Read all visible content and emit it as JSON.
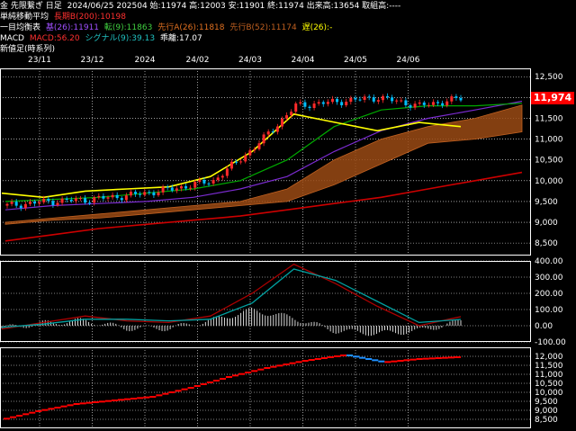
{
  "header": {
    "line1": {
      "instrument": "金 先限繋ぎ 日足",
      "stats": "2024/06/25 202504 始:11974 高:12003 安:11901 終:11974 出来高:13654 取組高:----"
    },
    "line2": {
      "label": "単純移動平均",
      "ma": "長期B(200):10198"
    },
    "line3": {
      "label": "一目均衡表",
      "base": "基(26):11911",
      "conv": "転(9):11863",
      "spanA": "先行A(26):11818",
      "spanB": "先行B(52):11174",
      "lag": "遅(26):-"
    },
    "line4": {
      "label": "MACD",
      "macd": "MACD:56.20",
      "signal": "シグナル(9):39.13",
      "diff": "乖離:17.07"
    },
    "line5": {
      "label": "新値足(時系列)"
    }
  },
  "current_price": "11,974",
  "colors": {
    "background": "#000000",
    "lagging_span": "#ffff00",
    "ma200": "#cc0000",
    "kijun": "#7b2bd0",
    "tenkan": "#00aa00",
    "cloud": "#9a4a14",
    "up_candle": "#ff2a2a",
    "down_candle": "#00bfff",
    "macd_line": "#aa0000",
    "signal_line": "#00a0a0",
    "price_tag": "#ff0000",
    "newprice_up": "#ff0000",
    "newprice_down": "#1e90ff"
  },
  "chart_data": [
    {
      "type": "candlestick",
      "title": "金 先限繋ぎ 日足",
      "x_ticks": [
        "23/11",
        "23/12",
        "2024",
        "24/02",
        "24/03",
        "24/04",
        "24/05",
        "24/06"
      ],
      "ylim": [
        8200,
        12700
      ],
      "y_ticks": [
        "12,500",
        "12,000",
        "11,500",
        "11,000",
        "10,500",
        "10,000",
        "9,500",
        "9,000",
        "8,500"
      ],
      "y_tick_values": [
        12500,
        12000,
        11500,
        11000,
        10500,
        10000,
        9500,
        9000,
        8500
      ],
      "series": [
        {
          "name": "長期B(200)",
          "values": [
            8550,
            8700,
            8850,
            8950,
            9050,
            9150,
            9300,
            9450,
            9600,
            9800,
            10000,
            10198
          ]
        },
        {
          "name": "先行A(26)",
          "values": [
            9000,
            9100,
            9200,
            9300,
            9400,
            9500,
            9800,
            10500,
            11000,
            11300,
            11500,
            11818
          ]
        },
        {
          "name": "先行B(52)",
          "values": [
            8950,
            9050,
            9100,
            9200,
            9300,
            9400,
            9500,
            9900,
            10400,
            10900,
            11000,
            11174
          ]
        },
        {
          "name": "遅(26)",
          "values": [
            9700,
            9600,
            9750,
            9800,
            9850,
            10100,
            10700,
            11600,
            11400,
            11200,
            11400,
            11300
          ]
        },
        {
          "name": "基(26)",
          "values": [
            9300,
            9400,
            9450,
            9500,
            9600,
            9800,
            10100,
            10700,
            11200,
            11500,
            11700,
            11911
          ]
        },
        {
          "name": "転(9)",
          "values": [
            9500,
            9550,
            9600,
            9700,
            9800,
            10000,
            10500,
            11300,
            11700,
            11800,
            11800,
            11863
          ]
        },
        {
          "name": "close",
          "values": [
            9400,
            9500,
            9550,
            9650,
            9800,
            10000,
            10800,
            11800,
            11900,
            12000,
            11800,
            11974
          ]
        }
      ]
    },
    {
      "type": "line",
      "title": "MACD",
      "ylim": [
        -100,
        400
      ],
      "y_ticks": [
        "400.00",
        "300.00",
        "200.00",
        "100.00",
        "0.00",
        "-100.00"
      ],
      "y_tick_values": [
        400,
        300,
        200,
        100,
        0,
        -100
      ],
      "series": [
        {
          "name": "MACD",
          "values": [
            -20,
            20,
            60,
            30,
            20,
            60,
            200,
            380,
            260,
            120,
            0,
            56.2
          ]
        },
        {
          "name": "シグナル(9)",
          "values": [
            -10,
            10,
            40,
            40,
            30,
            40,
            140,
            350,
            280,
            150,
            20,
            39.13
          ]
        }
      ]
    },
    {
      "type": "bar",
      "title": "新値足(時系列)",
      "ylim": [
        8000,
        12500
      ],
      "y_ticks": [
        "12,000",
        "11,500",
        "11,000",
        "10,500",
        "10,000",
        "9,500",
        "9,000",
        "8,500"
      ],
      "y_tick_values": [
        12000,
        11500,
        11000,
        10500,
        10000,
        9500,
        9000,
        8500
      ],
      "values": [
        8500,
        9000,
        9400,
        9600,
        9800,
        10300,
        10900,
        11400,
        11800,
        12100,
        11700,
        11900,
        12000
      ]
    }
  ]
}
